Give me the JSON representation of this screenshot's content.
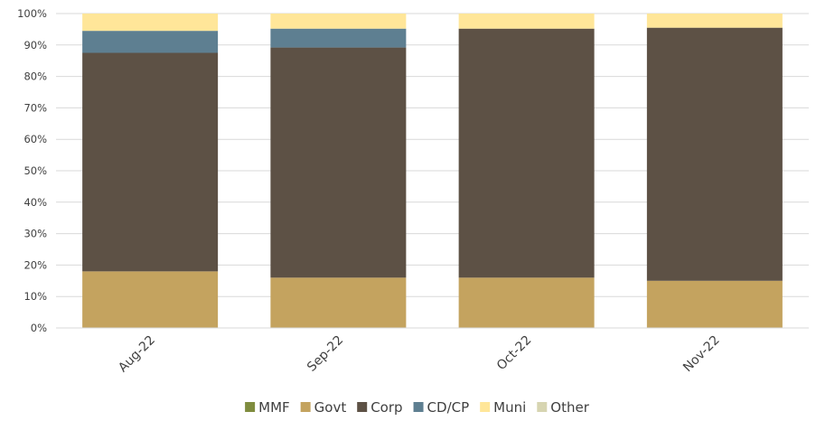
{
  "chart_data": {
    "type": "bar",
    "stacked": true,
    "categories": [
      "Aug-22",
      "Sep-22",
      "Oct-22",
      "Nov-22"
    ],
    "series": [
      {
        "name": "MMF",
        "color": "#7f8c3e",
        "values": [
          0,
          0,
          0,
          0
        ]
      },
      {
        "name": "Govt",
        "color": "#c4a35f",
        "values": [
          18,
          16,
          16,
          15
        ]
      },
      {
        "name": "Corp",
        "color": "#5d5145",
        "values": [
          69.5,
          73.2,
          79.2,
          80.5
        ]
      },
      {
        "name": "CD/CP",
        "color": "#5e7f91",
        "values": [
          7,
          6,
          0,
          0
        ]
      },
      {
        "name": "Muni",
        "color": "#ffe699",
        "values": [
          5.5,
          4.8,
          4.8,
          4.5
        ]
      },
      {
        "name": "Other",
        "color": "#d7d5b1",
        "values": [
          0,
          0,
          0,
          0
        ]
      }
    ],
    "yticks": [
      "0%",
      "10%",
      "20%",
      "30%",
      "40%",
      "50%",
      "60%",
      "70%",
      "80%",
      "90%",
      "100%"
    ],
    "ylim": [
      0,
      100
    ],
    "grid": true,
    "legend": "bottom"
  }
}
